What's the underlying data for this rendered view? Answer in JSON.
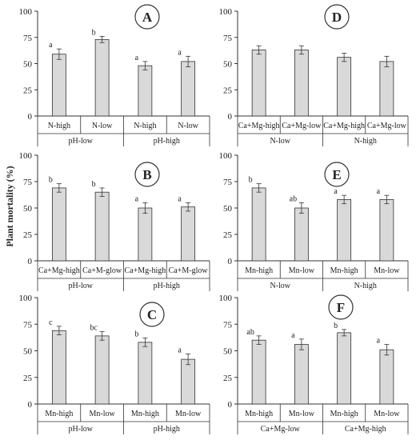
{
  "y_axis_label": "Plant mortality (%)",
  "chart_data": [
    {
      "type": "bar",
      "panel": "A",
      "categories": [
        "N-high",
        "N-low",
        "N-high",
        "N-low"
      ],
      "groups": [
        {
          "label": "pH-low",
          "span": [
            0,
            1
          ]
        },
        {
          "label": "pH-high",
          "span": [
            2,
            3
          ]
        }
      ],
      "values": [
        59,
        73,
        48,
        52
      ],
      "errors": [
        5,
        3,
        4,
        5
      ],
      "letters": [
        "a",
        "b",
        "a",
        "a"
      ],
      "ylim": [
        0,
        100
      ],
      "yticks": [
        0,
        25,
        50,
        75,
        100
      ]
    },
    {
      "type": "bar",
      "panel": "D",
      "categories": [
        "Ca+Mg-high",
        "Ca+Mg-low",
        "Ca+Mg-high",
        "Ca+Mg-low"
      ],
      "groups": [
        {
          "label": "N-low",
          "span": [
            0,
            1
          ]
        },
        {
          "label": "N-high",
          "span": [
            2,
            3
          ]
        }
      ],
      "values": [
        63,
        63,
        56,
        52
      ],
      "errors": [
        4,
        4,
        4,
        5
      ],
      "letters": [
        "",
        "",
        "",
        ""
      ],
      "ylim": [
        0,
        100
      ],
      "yticks": [
        0,
        25,
        50,
        75,
        100
      ]
    },
    {
      "type": "bar",
      "panel": "B",
      "categories": [
        "Ca+Mg-high",
        "Ca+M-glow",
        "Ca+Mg-high",
        "Ca+M-glow"
      ],
      "groups": [
        {
          "label": "pH-low",
          "span": [
            0,
            1
          ]
        },
        {
          "label": "pH-high",
          "span": [
            2,
            3
          ]
        }
      ],
      "values": [
        69,
        65,
        50,
        51
      ],
      "errors": [
        4,
        4,
        5,
        4
      ],
      "letters": [
        "b",
        "b",
        "a",
        "a"
      ],
      "ylim": [
        0,
        100
      ],
      "yticks": [
        0,
        25,
        50,
        75,
        100
      ]
    },
    {
      "type": "bar",
      "panel": "E",
      "categories": [
        "Mn-high",
        "Mn-low",
        "Mn-high",
        "Mn-low"
      ],
      "groups": [
        {
          "label": "N-low",
          "span": [
            0,
            1
          ]
        },
        {
          "label": "N-high",
          "span": [
            2,
            3
          ]
        }
      ],
      "values": [
        69,
        50,
        58,
        58
      ],
      "errors": [
        4,
        5,
        4,
        4
      ],
      "letters": [
        "b",
        "ab",
        "a",
        "a"
      ],
      "ylim": [
        0,
        100
      ],
      "yticks": [
        0,
        25,
        50,
        75,
        100
      ]
    },
    {
      "type": "bar",
      "panel": "C",
      "categories": [
        "Mn-high",
        "Mn-low",
        "Mn-high",
        "Mn-low"
      ],
      "groups": [
        {
          "label": "pH-low",
          "span": [
            0,
            1
          ]
        },
        {
          "label": "pH-high",
          "span": [
            2,
            3
          ]
        }
      ],
      "values": [
        69,
        64,
        58,
        42
      ],
      "errors": [
        4,
        4,
        4,
        5
      ],
      "letters": [
        "c",
        "bc",
        "b",
        "a"
      ],
      "ylim": [
        0,
        100
      ],
      "yticks": [
        0,
        25,
        50,
        75,
        100
      ]
    },
    {
      "type": "bar",
      "panel": "F",
      "categories": [
        "Mn-high",
        "Mn-low",
        "Mn-high",
        "Mn-low"
      ],
      "groups": [
        {
          "label": "Ca+Mg-low",
          "span": [
            0,
            1
          ]
        },
        {
          "label": "Ca+Mg-high",
          "span": [
            2,
            3
          ]
        }
      ],
      "values": [
        60,
        56,
        67,
        51
      ],
      "errors": [
        4,
        5,
        3,
        5
      ],
      "letters": [
        "ab",
        "a",
        "b",
        "a"
      ],
      "ylim": [
        0,
        100
      ],
      "yticks": [
        0,
        25,
        50,
        75,
        100
      ]
    }
  ],
  "colors": {
    "bar_fill": "#d9d9d9",
    "bar_stroke": "#333333",
    "axis": "#333333",
    "circle_fill": "#ffffff"
  }
}
